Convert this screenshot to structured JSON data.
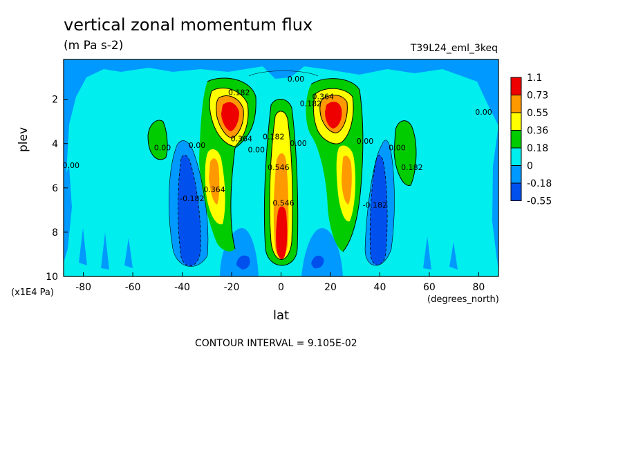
{
  "chart_data": {
    "type": "heatmap",
    "title": "vertical zonal momentum flux",
    "units": "(m Pa s-2)",
    "dataset_label": "T39L24_eml_3keq",
    "xlabel": "lat",
    "x_units": "(degrees_north)",
    "ylabel": "plev",
    "y_units": "(x1E4 Pa)",
    "xlim": [
      -88,
      88
    ],
    "ylim": [
      0.2,
      10
    ],
    "x_ticks": [
      "-80",
      "-60",
      "-40",
      "-20",
      "0",
      "20",
      "40",
      "60",
      "80"
    ],
    "y_ticks": [
      "2",
      "4",
      "6",
      "8",
      "10"
    ],
    "contour_interval": "CONTOUR INTERVAL = 9.105E-02",
    "legend": {
      "levels": [
        "1.1",
        "0.73",
        "0.55",
        "0.36",
        "0.18",
        "0",
        "-0.18",
        "-0.55"
      ],
      "colors": [
        "#ee0000",
        "#ff9900",
        "#ffff00",
        "#00cc00",
        "#00eeee",
        "#0099ff",
        "#0050ee"
      ]
    },
    "contour_labels": [
      {
        "text": "0.00",
        "x": 6,
        "y": 1.2
      },
      {
        "text": "0.182",
        "x": -17,
        "y": 1.8
      },
      {
        "text": "0.364",
        "x": -16,
        "y": 3.9
      },
      {
        "text": "0.00",
        "x": -48,
        "y": 4.3
      },
      {
        "text": "0.00",
        "x": -34,
        "y": 4.2
      },
      {
        "text": "0.00",
        "x": -85,
        "y": 5.1
      },
      {
        "text": "0.364",
        "x": -27,
        "y": 6.2
      },
      {
        "text": "-0.182",
        "x": -36,
        "y": 6.6
      },
      {
        "text": "0.00",
        "x": -10,
        "y": 4.4
      },
      {
        "text": "0.182",
        "x": -3,
        "y": 3.8
      },
      {
        "text": "0.546",
        "x": -1,
        "y": 5.2
      },
      {
        "text": "0.546",
        "x": 1,
        "y": 6.8
      },
      {
        "text": "0.00",
        "x": 7,
        "y": 4.1
      },
      {
        "text": "0.182",
        "x": 12,
        "y": 2.3
      },
      {
        "text": "0.364",
        "x": 17,
        "y": 2.0
      },
      {
        "text": "0.00",
        "x": 34,
        "y": 4.0
      },
      {
        "text": "0.00",
        "x": 47,
        "y": 4.3
      },
      {
        "text": "0.182",
        "x": 53,
        "y": 5.2
      },
      {
        "text": "-0.182",
        "x": 38,
        "y": 6.9
      },
      {
        "text": "0.00",
        "x": 82,
        "y": 2.7
      }
    ]
  }
}
